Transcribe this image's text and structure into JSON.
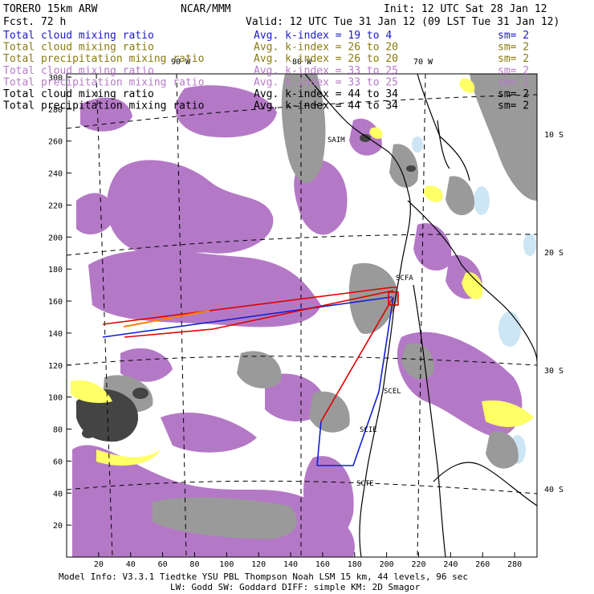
{
  "header": {
    "model": "TORERO  15km ARW",
    "org": "NCAR/MMM",
    "init": "Init: 12 UTC Sat 28 Jan 12",
    "fcst": "Fcst.   72 h",
    "valid": "Valid: 12 UTC Tue 31 Jan 12 (09 LST Tue 31 Jan 12)"
  },
  "fields": [
    {
      "name": "Total cloud mixing ratio",
      "kindex": "Avg. k-index =  19 to   4",
      "sm": "sm= 2",
      "color": "#1a1ac8"
    },
    {
      "name": "Total cloud mixing ratio",
      "kindex": "Avg. k-index =  26 to  20",
      "sm": "sm= 2",
      "color": "#8a7a10"
    },
    {
      "name": "Total precipitation mixing ratio",
      "kindex": "Avg. k-index =  26 to  20",
      "sm": "sm= 2",
      "color": "#8a7a10"
    },
    {
      "name": "Total cloud mixing ratio",
      "kindex": "Avg. k-index =  33 to  25",
      "sm": "sm= 2",
      "color": "#b87ac8"
    },
    {
      "name": "Total precipitation mixing ratio",
      "kindex": "Avg. k-index =  33 to  25",
      "sm": "sm= 2",
      "color": "#b87ac8"
    },
    {
      "name": "Total cloud mixing ratio",
      "kindex": "Avg. k-index =  44 to  34",
      "sm": "sm= 2",
      "color": "#000000"
    },
    {
      "name": "Total precipitation mixing ratio",
      "kindex": "Avg. k-index =  44 to  34",
      "sm": "sm= 2",
      "color": "#000000"
    }
  ],
  "axes": {
    "x_ticks": [
      "20",
      "40",
      "60",
      "80",
      "100",
      "120",
      "140",
      "160",
      "180",
      "200",
      "220",
      "240",
      "260",
      "280"
    ],
    "y_ticks": [
      "20",
      "40",
      "60",
      "80",
      "100",
      "120",
      "140",
      "160",
      "180",
      "200",
      "220",
      "240",
      "260",
      "280",
      "300"
    ],
    "lon_labels": [
      "90 W",
      "80 W",
      "70 W"
    ],
    "lat_labels": [
      "10 S",
      "20 S",
      "30 S",
      "40 S"
    ]
  },
  "stations": [
    "SAIM",
    "SCFA",
    "SCEL",
    "SCIE",
    "SCTE"
  ],
  "footer": {
    "line1": "Model Info: V3.3.1   Tiedtke YSU PBL  Thompson     Noah LSM  15 km,   44 levels,   96 sec",
    "line2": "LW: Godd SW: Goddard DIFF: simple KM: 2D Smagor"
  },
  "colors": {
    "purple": "#b479c6",
    "gray": "#9a9a9a",
    "yellow": "#ffff66",
    "light_blue": "#cce6f5",
    "path_red": "#e00000",
    "path_blue": "#1020d0",
    "path_orange": "#ff8000"
  }
}
